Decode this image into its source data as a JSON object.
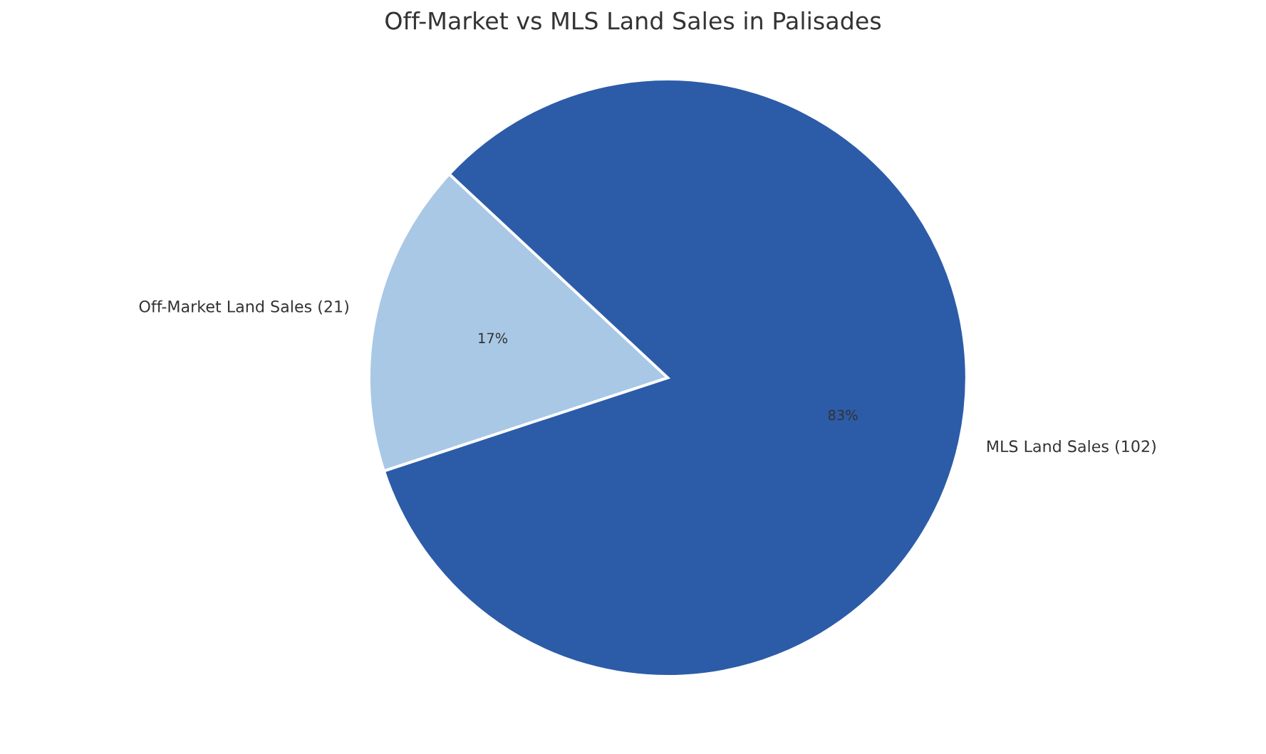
{
  "chart_data": {
    "type": "pie",
    "title": "Off-Market vs MLS Land Sales in Palisades",
    "categories": [
      "Off-Market Land Sales (21)",
      "MLS Land Sales (102)"
    ],
    "values": [
      17,
      83
    ],
    "colors": [
      "#a8c8e6",
      "#2c5ca8"
    ],
    "value_labels": [
      "17%",
      "83%"
    ]
  }
}
